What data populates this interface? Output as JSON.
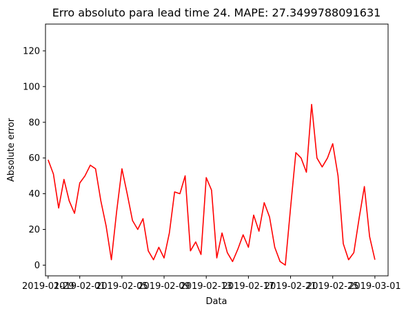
{
  "chart_data": {
    "type": "line",
    "title": "Erro absoluto para lead time 24. MAPE: 27.3499788091631",
    "xlabel": "Data",
    "ylabel": "Absolute error",
    "xlim": [
      "2019-01-28T18:00",
      "2019-03-02T06:00"
    ],
    "ylim": [
      -6,
      135
    ],
    "x_ticks": [
      "2019-01-29",
      "2019-02-01",
      "2019-02-05",
      "2019-02-09",
      "2019-02-13",
      "2019-02-17",
      "2019-02-21",
      "2019-02-25",
      "2019-03-01"
    ],
    "y_ticks": [
      0,
      20,
      40,
      60,
      80,
      100,
      120
    ],
    "grid": false,
    "legend": "none",
    "series": [
      {
        "color": "#ff0000",
        "x": [
          "2019-01-29T00:00",
          "2019-01-29T12:00",
          "2019-01-30T00:00",
          "2019-01-30T12:00",
          "2019-01-31T00:00",
          "2019-01-31T12:00",
          "2019-02-01T00:00",
          "2019-02-01T12:00",
          "2019-02-02T00:00",
          "2019-02-02T12:00",
          "2019-02-03T00:00",
          "2019-02-03T12:00",
          "2019-02-04T00:00",
          "2019-02-04T12:00",
          "2019-02-05T00:00",
          "2019-02-05T12:00",
          "2019-02-06T00:00",
          "2019-02-06T12:00",
          "2019-02-07T00:00",
          "2019-02-07T12:00",
          "2019-02-08T00:00",
          "2019-02-08T12:00",
          "2019-02-09T00:00",
          "2019-02-09T12:00",
          "2019-02-10T00:00",
          "2019-02-10T12:00",
          "2019-02-11T00:00",
          "2019-02-11T12:00",
          "2019-02-12T00:00",
          "2019-02-12T12:00",
          "2019-02-13T00:00",
          "2019-02-13T12:00",
          "2019-02-14T00:00",
          "2019-02-14T12:00",
          "2019-02-15T00:00",
          "2019-02-15T12:00",
          "2019-02-16T00:00",
          "2019-02-16T12:00",
          "2019-02-17T00:00",
          "2019-02-17T12:00",
          "2019-02-18T00:00",
          "2019-02-18T12:00",
          "2019-02-19T00:00",
          "2019-02-19T12:00",
          "2019-02-20T00:00",
          "2019-02-20T12:00",
          "2019-02-21T00:00",
          "2019-02-21T12:00",
          "2019-02-22T00:00",
          "2019-02-22T12:00",
          "2019-02-23T00:00",
          "2019-02-23T12:00",
          "2019-02-24T00:00",
          "2019-02-24T12:00",
          "2019-02-25T00:00",
          "2019-02-25T12:00",
          "2019-02-26T00:00",
          "2019-02-26T12:00",
          "2019-02-27T00:00",
          "2019-02-27T12:00",
          "2019-02-28T00:00",
          "2019-02-28T12:00",
          "2019-03-01T00:00"
        ],
        "y": [
          59,
          51,
          32,
          48,
          36,
          29,
          46,
          50,
          56,
          54,
          36,
          22,
          3,
          30,
          54,
          40,
          25,
          20,
          26,
          8,
          3,
          10,
          4,
          18,
          41,
          40,
          50,
          8,
          13,
          6,
          49,
          42,
          4,
          18,
          7,
          2,
          9,
          17,
          10,
          28,
          19,
          35,
          27,
          10,
          2,
          0,
          32,
          63,
          60,
          52,
          90,
          60,
          55,
          60,
          68,
          50,
          12,
          3,
          7,
          26,
          44,
          16,
          3
        ]
      }
    ]
  }
}
